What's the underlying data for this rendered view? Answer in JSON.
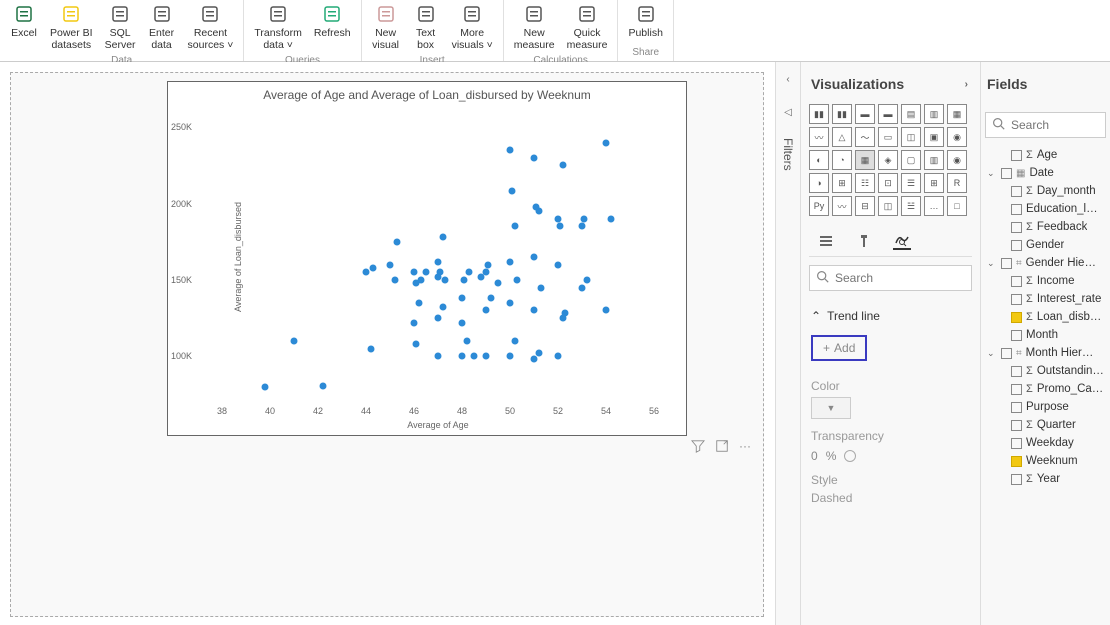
{
  "ribbon": {
    "groups": [
      {
        "label": "Data",
        "items": [
          {
            "name": "excel",
            "label": "Excel",
            "icon": "#1f7244"
          },
          {
            "name": "pbi-datasets",
            "label": "Power BI\ndatasets",
            "icon": "#f2c811"
          },
          {
            "name": "sql-server",
            "label": "SQL\nServer",
            "icon": "#555"
          },
          {
            "name": "enter-data",
            "label": "Enter\ndata",
            "icon": "#555"
          },
          {
            "name": "recent-sources",
            "label": "Recent\nsources ˅",
            "icon": "#555"
          }
        ]
      },
      {
        "label": "Queries",
        "items": [
          {
            "name": "transform-data",
            "label": "Transform\ndata ˅",
            "icon": "#555"
          },
          {
            "name": "refresh",
            "label": "Refresh",
            "icon": "#2a7"
          }
        ]
      },
      {
        "label": "Insert",
        "items": [
          {
            "name": "new-visual",
            "label": "New\nvisual",
            "icon": "#c99"
          },
          {
            "name": "text-box",
            "label": "Text\nbox",
            "icon": "#555"
          },
          {
            "name": "more-visuals",
            "label": "More\nvisuals ˅",
            "icon": "#555"
          }
        ]
      },
      {
        "label": "Calculations",
        "items": [
          {
            "name": "new-measure",
            "label": "New\nmeasure",
            "icon": "#555"
          },
          {
            "name": "quick-measure",
            "label": "Quick\nmeasure",
            "icon": "#555"
          }
        ]
      },
      {
        "label": "Share",
        "items": [
          {
            "name": "publish",
            "label": "Publish",
            "icon": "#555"
          }
        ]
      }
    ]
  },
  "chart": {
    "title": "Average of Age and Average of Loan_disbursed by Weeknum",
    "x_label": "Average of Age",
    "y_label": "Average of Loan_disbursed",
    "xlim": [
      37,
      57
    ],
    "ylim": [
      70000,
      260000
    ],
    "x_ticks": [
      38,
      40,
      42,
      44,
      46,
      48,
      50,
      52,
      54,
      56
    ],
    "y_ticks": [
      {
        "v": 100000,
        "l": "100K"
      },
      {
        "v": 150000,
        "l": "150K"
      },
      {
        "v": 200000,
        "l": "200K"
      },
      {
        "v": 250000,
        "l": "250K"
      }
    ],
    "dot_color": "#2c8ad6",
    "background": "#ffffff",
    "points": [
      [
        39.8,
        80000
      ],
      [
        42.2,
        80500
      ],
      [
        41.0,
        110000
      ],
      [
        44.2,
        105000
      ],
      [
        44.0,
        155000
      ],
      [
        44.3,
        158000
      ],
      [
        45.2,
        150000
      ],
      [
        45.0,
        160000
      ],
      [
        45.3,
        175000
      ],
      [
        46.1,
        108000
      ],
      [
        46.0,
        122000
      ],
      [
        46.2,
        135000
      ],
      [
        46.3,
        150000
      ],
      [
        46.0,
        155000
      ],
      [
        46.1,
        148000
      ],
      [
        47.0,
        125000
      ],
      [
        47.2,
        132000
      ],
      [
        47.0,
        152000
      ],
      [
        47.1,
        155000
      ],
      [
        47.3,
        150000
      ],
      [
        47.0,
        162000
      ],
      [
        47.2,
        178000
      ],
      [
        47.0,
        100000
      ],
      [
        48.0,
        100000
      ],
      [
        48.2,
        110000
      ],
      [
        48.0,
        138000
      ],
      [
        48.1,
        150000
      ],
      [
        48.3,
        155000
      ],
      [
        48.0,
        122000
      ],
      [
        48.5,
        100000
      ],
      [
        49.0,
        100000
      ],
      [
        49.0,
        130000
      ],
      [
        49.2,
        138000
      ],
      [
        49.0,
        155000
      ],
      [
        49.1,
        160000
      ],
      [
        50.0,
        100000
      ],
      [
        50.2,
        110000
      ],
      [
        50.0,
        135000
      ],
      [
        50.3,
        150000
      ],
      [
        50.0,
        162000
      ],
      [
        50.2,
        185000
      ],
      [
        50.1,
        208000
      ],
      [
        50.0,
        235000
      ],
      [
        51.0,
        98000
      ],
      [
        51.2,
        102000
      ],
      [
        51.0,
        130000
      ],
      [
        51.3,
        145000
      ],
      [
        51.0,
        165000
      ],
      [
        51.2,
        195000
      ],
      [
        51.1,
        198000
      ],
      [
        51.0,
        230000
      ],
      [
        52.0,
        100000
      ],
      [
        52.2,
        125000
      ],
      [
        52.3,
        128000
      ],
      [
        52.0,
        160000
      ],
      [
        52.1,
        185000
      ],
      [
        52.0,
        190000
      ],
      [
        52.2,
        225000
      ],
      [
        53.0,
        145000
      ],
      [
        53.2,
        150000
      ],
      [
        53.0,
        185000
      ],
      [
        53.1,
        190000
      ],
      [
        54.0,
        130000
      ],
      [
        54.2,
        190000
      ],
      [
        54.0,
        240000
      ],
      [
        46.5,
        155000
      ],
      [
        48.8,
        152000
      ],
      [
        49.5,
        148000
      ]
    ]
  },
  "viz_panel": {
    "title": "Visualizations",
    "search_placeholder": "Search",
    "trend_line": "Trend line",
    "add": "Add",
    "color": "Color",
    "transparency": "Transparency",
    "transp_value": "0",
    "transp_unit": "%",
    "style": "Style",
    "style_value": "Dashed"
  },
  "fields_panel": {
    "title": "Fields",
    "search_placeholder": "Search",
    "items": [
      {
        "indent": 1,
        "check": false,
        "sigma": true,
        "label": "Age"
      },
      {
        "indent": 0,
        "expand": "down",
        "check": false,
        "date": true,
        "label": "Date"
      },
      {
        "indent": 1,
        "check": false,
        "sigma": true,
        "label": "Day_month"
      },
      {
        "indent": 1,
        "check": false,
        "label": "Education_l…"
      },
      {
        "indent": 1,
        "check": false,
        "sigma": true,
        "label": "Feedback"
      },
      {
        "indent": 1,
        "check": false,
        "label": "Gender"
      },
      {
        "indent": 0,
        "expand": "down",
        "check": false,
        "hier": true,
        "label": "Gender Hie…"
      },
      {
        "indent": 1,
        "check": false,
        "sigma": true,
        "label": "Income"
      },
      {
        "indent": 1,
        "check": false,
        "sigma": true,
        "label": "Interest_rate"
      },
      {
        "indent": 1,
        "check": true,
        "sigma": true,
        "label": "Loan_disbu…"
      },
      {
        "indent": 1,
        "check": false,
        "label": "Month"
      },
      {
        "indent": 0,
        "expand": "down",
        "check": false,
        "hier": true,
        "label": "Month Hier…"
      },
      {
        "indent": 1,
        "check": false,
        "sigma": true,
        "label": "Outstandin…"
      },
      {
        "indent": 1,
        "check": false,
        "sigma": true,
        "label": "Promo_Ca…"
      },
      {
        "indent": 1,
        "check": false,
        "label": "Purpose"
      },
      {
        "indent": 1,
        "check": false,
        "sigma": true,
        "label": "Quarter"
      },
      {
        "indent": 1,
        "check": false,
        "label": "Weekday"
      },
      {
        "indent": 1,
        "check": true,
        "label": "Weeknum"
      },
      {
        "indent": 1,
        "check": false,
        "sigma": true,
        "label": "Year"
      }
    ]
  },
  "filters_label": "Filters"
}
